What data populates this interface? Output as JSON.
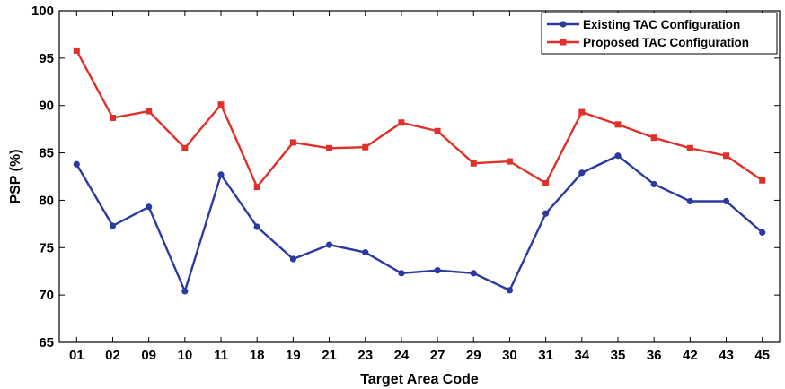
{
  "chart_data": {
    "type": "line",
    "xlabel": "Target Area Code",
    "ylabel": "PSP (%)",
    "ylim": [
      65,
      100
    ],
    "yticks": [
      65,
      70,
      75,
      80,
      85,
      90,
      95,
      100
    ],
    "grid": false,
    "legend_position": "top-right",
    "categories": [
      "01",
      "02",
      "09",
      "10",
      "11",
      "18",
      "19",
      "21",
      "23",
      "24",
      "27",
      "29",
      "30",
      "31",
      "34",
      "35",
      "36",
      "42",
      "43",
      "45"
    ],
    "series": [
      {
        "name": "Existing TAC Configuration",
        "color": "#2b3aa0",
        "marker": "circle",
        "values": [
          83.8,
          77.3,
          79.3,
          70.4,
          82.7,
          77.2,
          73.8,
          75.3,
          74.5,
          72.3,
          72.6,
          72.3,
          70.5,
          78.6,
          82.9,
          84.7,
          81.7,
          79.9,
          79.9,
          76.6
        ]
      },
      {
        "name": "Proposed TAC Configuration",
        "color": "#e0302a",
        "marker": "square",
        "values": [
          95.8,
          88.7,
          89.4,
          85.5,
          90.1,
          81.4,
          86.1,
          85.5,
          85.6,
          88.2,
          87.3,
          83.9,
          84.1,
          81.8,
          89.3,
          88.0,
          86.6,
          85.5,
          84.7,
          82.1
        ]
      }
    ]
  }
}
